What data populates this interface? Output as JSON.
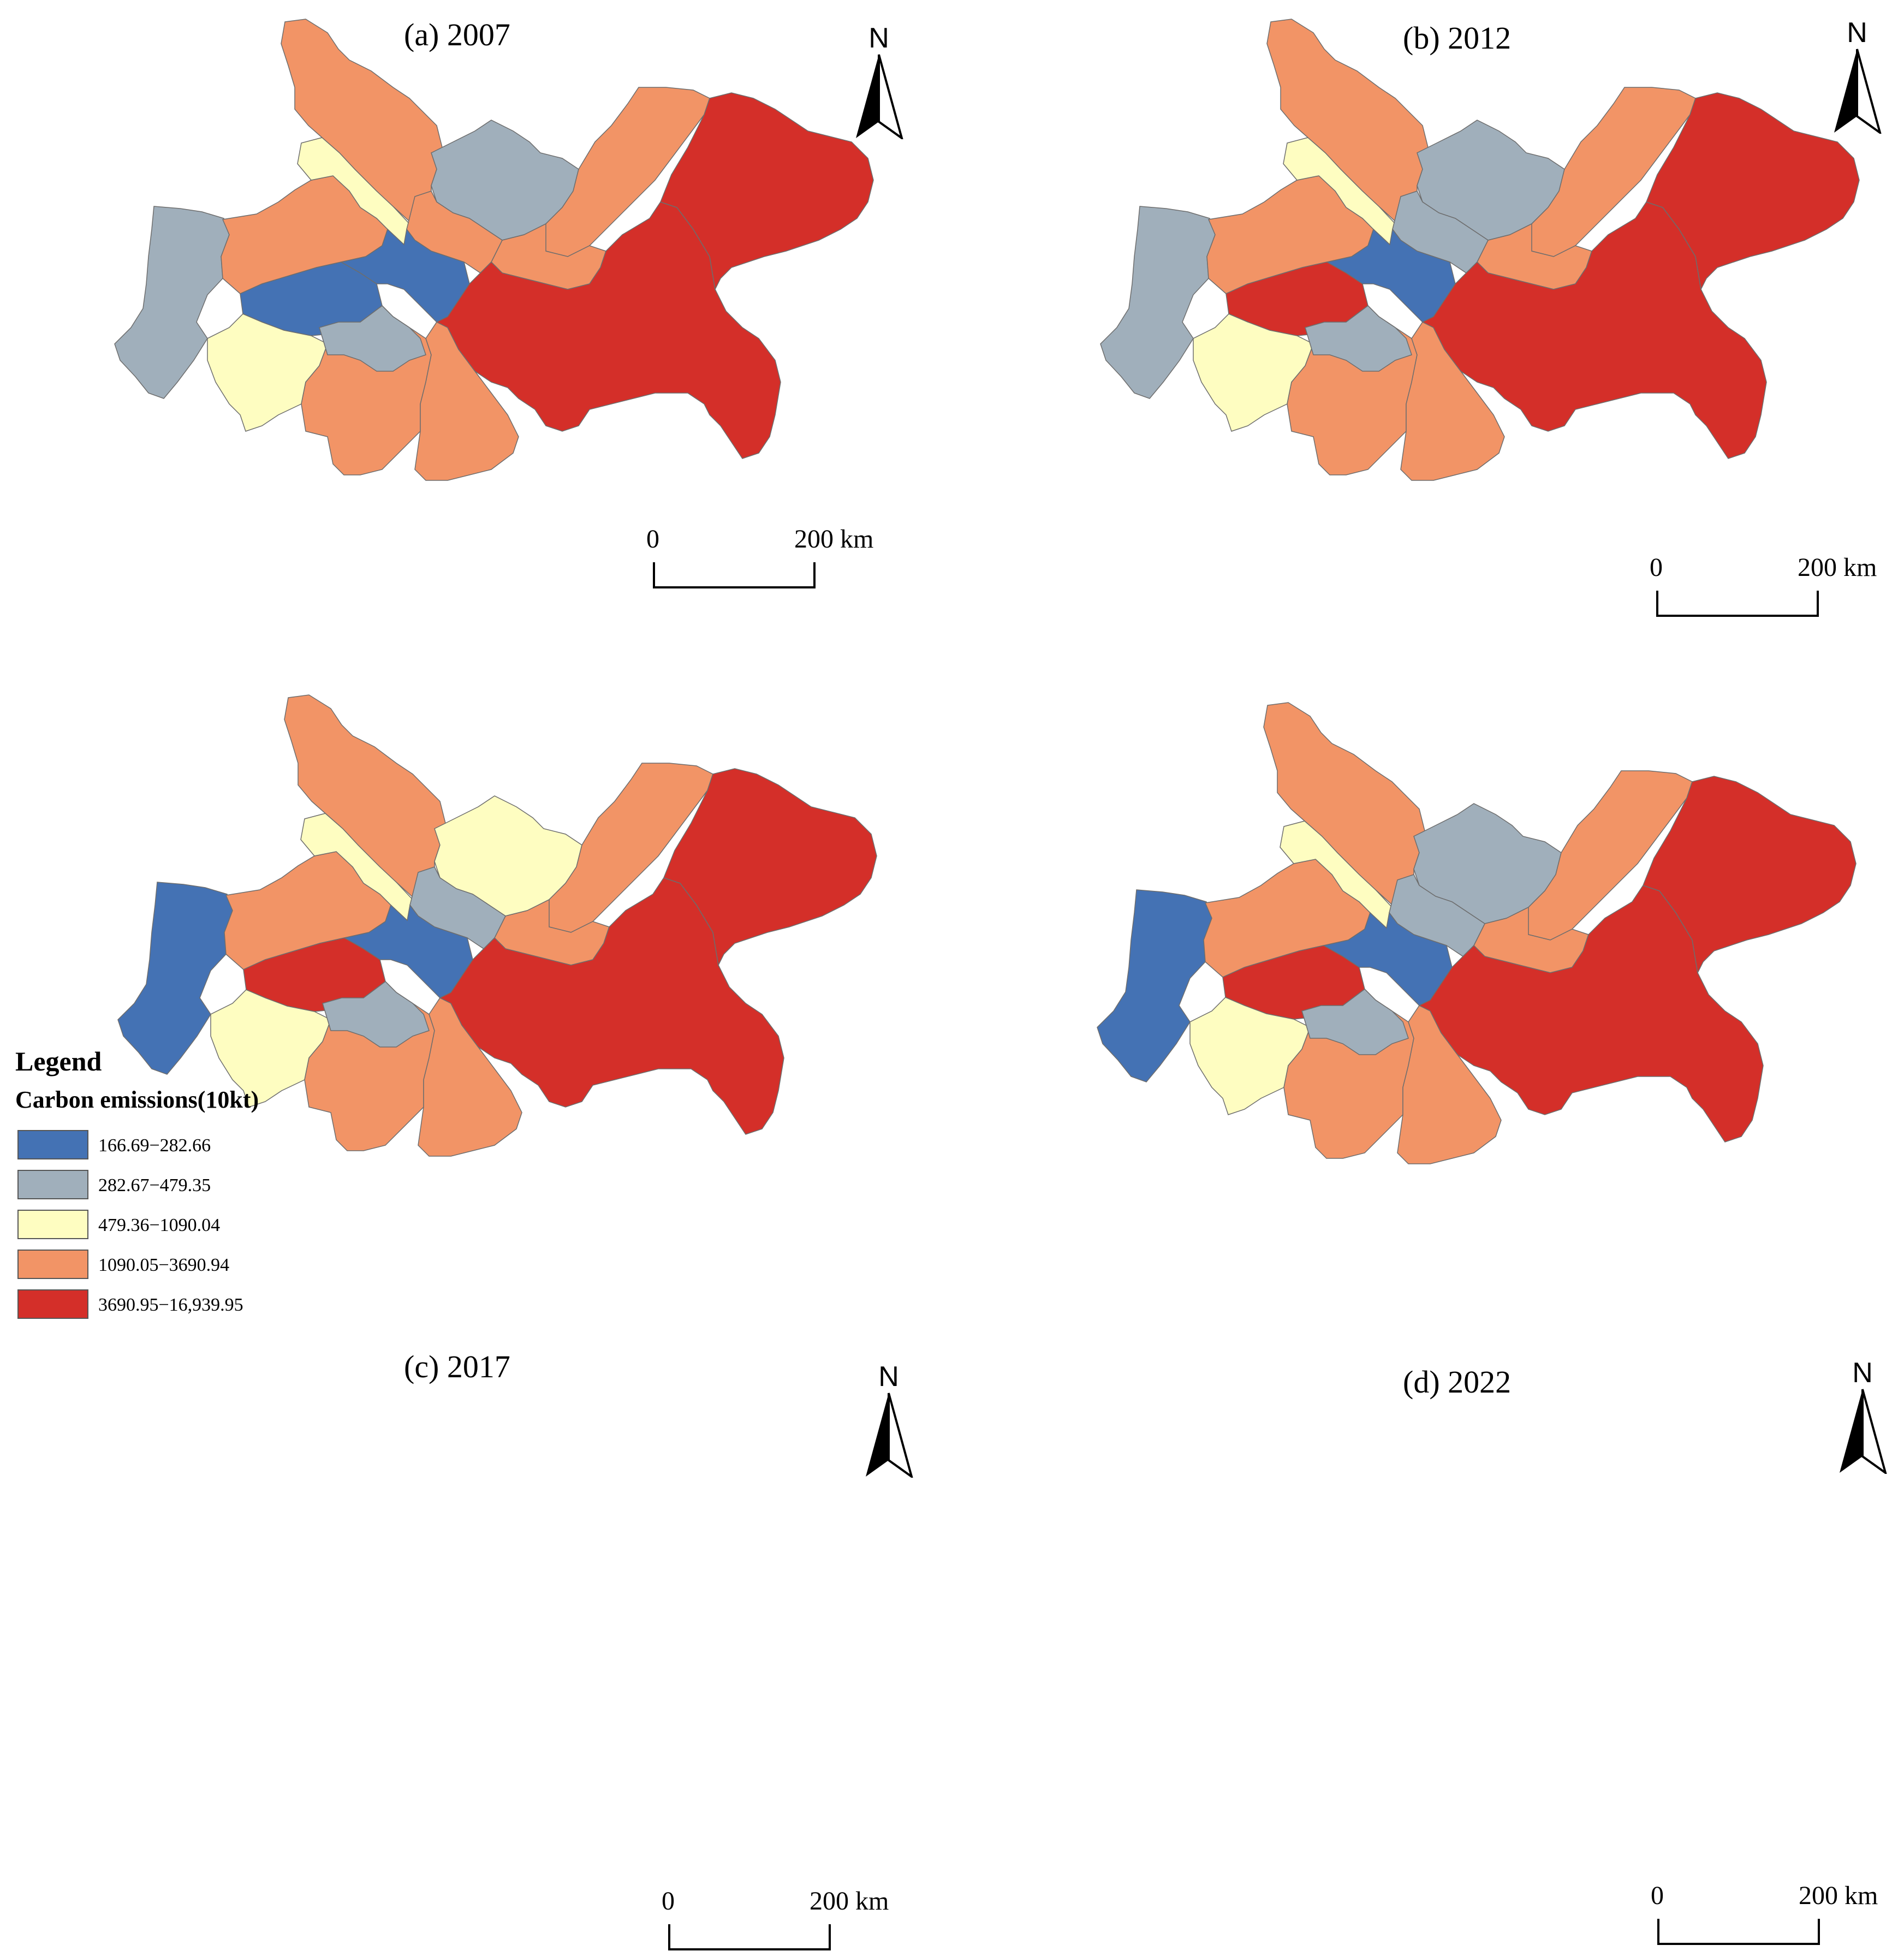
{
  "panels": [
    {
      "key": "a",
      "title": "(a) 2007",
      "colors": {
        "r1": "c2",
        "r2": "c4",
        "r3": "c3",
        "r4": "c1",
        "r5": "c3",
        "r6": "c4",
        "r7": "c2",
        "r8": "c4",
        "r9": "c4",
        "r10": "c4",
        "r11": "c1",
        "r12": "c4",
        "r13": "c2",
        "r14": "c4",
        "r15": "c5",
        "r16": "c5"
      }
    },
    {
      "key": "b",
      "title": "(b) 2012",
      "colors": {
        "r1": "c2",
        "r2": "c4",
        "r3": "c3",
        "r4": "c5",
        "r5": "c3",
        "r6": "c4",
        "r7": "c2",
        "r8": "c4",
        "r9": "c4",
        "r10": "c2",
        "r11": "c1",
        "r12": "c4",
        "r13": "c2",
        "r14": "c4",
        "r15": "c5",
        "r16": "c5"
      }
    },
    {
      "key": "c",
      "title": "(c) 2017",
      "colors": {
        "r1": "c1",
        "r2": "c4",
        "r3": "c3",
        "r4": "c5",
        "r5": "c3",
        "r6": "c4",
        "r7": "c3",
        "r8": "c4",
        "r9": "c4",
        "r10": "c2",
        "r11": "c1",
        "r12": "c4",
        "r13": "c2",
        "r14": "c4",
        "r15": "c5",
        "r16": "c5"
      }
    },
    {
      "key": "d",
      "title": "(d) 2022",
      "colors": {
        "r1": "c1",
        "r2": "c4",
        "r3": "c3",
        "r4": "c5",
        "r5": "c3",
        "r6": "c4",
        "r7": "c2",
        "r8": "c4",
        "r9": "c4",
        "r10": "c2",
        "r11": "c1",
        "r12": "c4",
        "r13": "c2",
        "r14": "c4",
        "r15": "c5",
        "r16": "c5"
      }
    }
  ],
  "north_label": "N",
  "scale_bar": {
    "zero": "0",
    "max": "200 km"
  },
  "legend": {
    "title": "Legend",
    "subtitle": "Carbon emissions(10kt)",
    "classes": [
      {
        "id": "c1",
        "label": "166.69−282.66",
        "color": "#4472b4"
      },
      {
        "id": "c2",
        "label": "282.67−479.35",
        "color": "#a0afbb"
      },
      {
        "id": "c3",
        "label": "479.36−1090.04",
        "color": "#fefdc1"
      },
      {
        "id": "c4",
        "label": "1090.05−3690.94",
        "color": "#f29466"
      },
      {
        "id": "c5",
        "label": "3690.95−16,939.95",
        "color": "#d42f29"
      }
    ]
  }
}
